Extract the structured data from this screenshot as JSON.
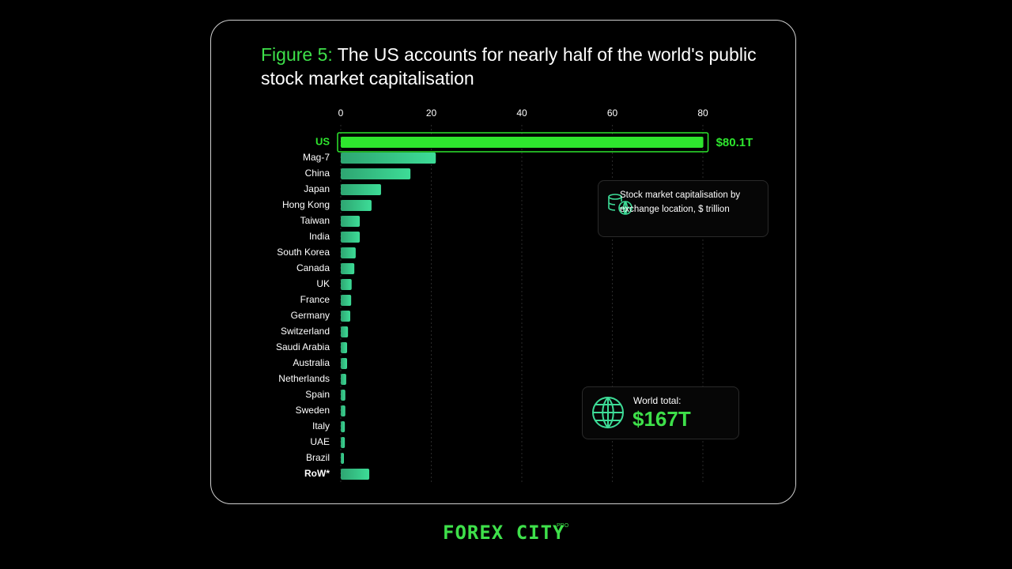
{
  "chart_data": {
    "type": "bar",
    "orientation": "horizontal",
    "title_lead": "Figure 5:",
    "title": "The US accounts for nearly half of the world's public stock market capitalisation",
    "categories": [
      "US",
      "Mag-7",
      "China",
      "Japan",
      "Hong Kong",
      "Taiwan",
      "India",
      "South Korea",
      "Canada",
      "UK",
      "France",
      "Germany",
      "Switzerland",
      "Saudi Arabia",
      "Australia",
      "Netherlands",
      "Spain",
      "Sweden",
      "Italy",
      "UAE",
      "Brazil",
      "RoW*"
    ],
    "values": [
      80.1,
      21,
      15.4,
      8.9,
      6.8,
      4.2,
      4.2,
      3.3,
      3.0,
      2.4,
      2.3,
      2.1,
      1.6,
      1.4,
      1.4,
      1.2,
      1.0,
      1.0,
      0.9,
      0.9,
      0.7,
      6.3
    ],
    "value_labels": [
      "$80.1T",
      null,
      null,
      null,
      null,
      null,
      null,
      null,
      null,
      null,
      null,
      null,
      null,
      null,
      null,
      null,
      null,
      null,
      null,
      null,
      null,
      null
    ],
    "color": "#3ddc97",
    "highlight": "US",
    "highlight_color": "#2ee62e",
    "xlim": [
      0,
      80
    ],
    "xticks": [
      0,
      20,
      40,
      60,
      80
    ],
    "grid": true,
    "legend_text": "Stock market capitalisation by exchange location, $ trillion",
    "world_total_label": "World total:",
    "world_total_value": "$167T"
  },
  "footer": {
    "logo": "FOREX CITY",
    "logo_sup": "PRO"
  }
}
